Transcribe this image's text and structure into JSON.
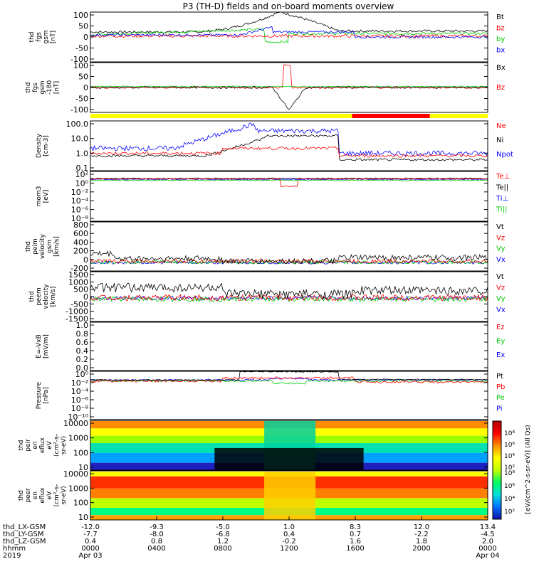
{
  "chart_data": {
    "type": "line",
    "title": "P3 (TH-D) fields and on-board moments overview",
    "time_ticks": [
      "0000",
      "0400",
      "0800",
      "1200",
      "1600",
      "2000",
      "0000"
    ],
    "time_hours": [
      0,
      4,
      8,
      12,
      16,
      20,
      24
    ],
    "start_date": "Apr 03",
    "end_date": "Apr 04",
    "year": "2019",
    "ephemeris": [
      {
        "label": "thd_LX-GSM",
        "values": [
          "-12.0",
          "-9.3",
          "-5.0",
          "1.0",
          "8.3",
          "12.0",
          "13.4"
        ]
      },
      {
        "label": "thd_LY-GSM",
        "values": [
          "-7.7",
          "-8.0",
          "-6.8",
          "0.4",
          "0.7",
          "-2.2",
          "-4.5"
        ]
      },
      {
        "label": "thd_LZ-GSM",
        "values": [
          "0.4",
          "0.8",
          "1.2",
          "-0.2",
          "1.6",
          "1.8",
          "2.0"
        ]
      },
      {
        "label": "hhmm",
        "values": [
          "0000",
          "0400",
          "0800",
          "1200",
          "1600",
          "2000",
          "0000"
        ]
      }
    ],
    "panels": [
      {
        "id": "fgs",
        "ylabel": [
          "thd",
          "fgs",
          "gsm",
          "[nT]"
        ],
        "ylim": [
          -100,
          100
        ],
        "yticks": [
          "100",
          "50",
          "0",
          "-50",
          "-100"
        ],
        "legend": [
          {
            "name": "Bt",
            "color": "#000000"
          },
          {
            "name": "bz",
            "color": "#ff0000"
          },
          {
            "name": "by",
            "color": "#00cc00"
          },
          {
            "name": "bx",
            "color": "#0000ff"
          }
        ]
      },
      {
        "id": "fgs-angles",
        "ylabel": [
          "thd",
          "fgs",
          "gsm",
          "-180",
          "[nT]"
        ],
        "ylim": [
          -120,
          120
        ],
        "yticks": [
          "100",
          "50",
          "0",
          "-50",
          "-100"
        ],
        "legend": [
          {
            "name": "Bx",
            "color": "#000000"
          },
          {
            "name": "Bz",
            "color": "#ff0000"
          }
        ]
      },
      {
        "id": "density",
        "ylabel": [
          "Density",
          "[cm-3]"
        ],
        "log": true,
        "yticks": [
          "100.0",
          "10.0",
          "1.0",
          "0.1"
        ],
        "legend": [
          {
            "name": "Ne",
            "color": "#ff0000"
          },
          {
            "name": "Ni",
            "color": "#000000"
          },
          {
            "name": "Npot",
            "color": "#0000ff"
          }
        ]
      },
      {
        "id": "temperature",
        "ylabel": [
          "mom3",
          "[eV]"
        ],
        "log": true,
        "yticks": [
          "10²",
          "10⁰",
          "10⁻²",
          "10⁻⁴",
          "10⁻⁶",
          "10⁻⁸"
        ],
        "legend": [
          {
            "name": "Te⊥",
            "color": "#ff0000"
          },
          {
            "name": "Te||",
            "color": "#000000"
          },
          {
            "name": "Ti⊥",
            "color": "#0000ff"
          },
          {
            "name": "Ti||",
            "color": "#00cc00"
          }
        ]
      },
      {
        "id": "peim-velocity",
        "ylabel": [
          "thd",
          "peim",
          "velocity",
          "gsm",
          "[km/s]"
        ],
        "ylim": [
          -200,
          800
        ],
        "yticks": [
          "800",
          "600",
          "400",
          "200",
          "0",
          "-200"
        ],
        "legend": [
          {
            "name": "Vt",
            "color": "#000000"
          },
          {
            "name": "Vz",
            "color": "#ff0000"
          },
          {
            "name": "Vy",
            "color": "#00cc00"
          },
          {
            "name": "Vx",
            "color": "#0000ff"
          }
        ]
      },
      {
        "id": "peem-velocity",
        "ylabel": [
          "thd",
          "peem",
          "velocity",
          "[km/s]"
        ],
        "ylim": [
          -1500,
          1500
        ],
        "yticks": [
          "1500",
          "1000",
          "500",
          "0",
          "-500",
          "-1000",
          "-1500"
        ],
        "legend": [
          {
            "name": "Vt",
            "color": "#000000"
          },
          {
            "name": "Vz",
            "color": "#ff0000"
          },
          {
            "name": "Vy",
            "color": "#00cc00"
          },
          {
            "name": "Vx",
            "color": "#0000ff"
          }
        ]
      },
      {
        "id": "efield",
        "ylabel": [
          "E=-VxB",
          "[mV/m]"
        ],
        "ylim": [
          0,
          1
        ],
        "yticks": [
          "1.0",
          "0.8",
          "0.6",
          "0.4",
          "0.2",
          "0.0"
        ],
        "legend": [
          {
            "name": "Ez",
            "color": "#ff0000"
          },
          {
            "name": "Ey",
            "color": "#00cc00"
          },
          {
            "name": "Ex",
            "color": "#0000ff"
          }
        ]
      },
      {
        "id": "pressure",
        "ylabel": [
          "Pressure",
          "[nPa]"
        ],
        "log": true,
        "yticks": [
          "10⁰",
          "10⁻²",
          "10⁻⁴",
          "10⁻⁶",
          "10⁻⁸",
          "10⁻¹⁰"
        ],
        "legend": [
          {
            "name": "Pt",
            "color": "#000000"
          },
          {
            "name": "Pb",
            "color": "#ff0000"
          },
          {
            "name": "Pe",
            "color": "#00cc00"
          },
          {
            "name": "Pi",
            "color": "#0000ff"
          }
        ]
      },
      {
        "id": "peir-spec",
        "type": "heatmap",
        "ylabel": [
          "thd",
          "peir",
          "en",
          "eflux",
          "eV",
          "(cm²-s-",
          "sr-eV)"
        ],
        "yticks": [
          "10000",
          "1000",
          "100",
          "10"
        ]
      },
      {
        "id": "peer-spec",
        "type": "heatmap",
        "ylabel": [
          "thd",
          "peer",
          "en",
          "eflux",
          "eV",
          "(cm²-s-",
          "sr-eV)"
        ],
        "yticks": [
          "10000",
          "1000",
          "100",
          "10"
        ]
      }
    ],
    "colorbar": {
      "label": "[eV/(cm^2-s-sr-eV)] (All Qs)",
      "ticks_top": [
        "10⁸",
        "10⁶",
        "10⁴",
        "10²"
      ],
      "ticks_bottom": [
        "10⁸",
        "10⁶",
        "10⁴",
        "10²"
      ]
    }
  },
  "colors": {
    "black": "#000000",
    "red": "#ff0000",
    "green": "#00cc00",
    "blue": "#0000ff",
    "yellow": "#ffff00"
  }
}
